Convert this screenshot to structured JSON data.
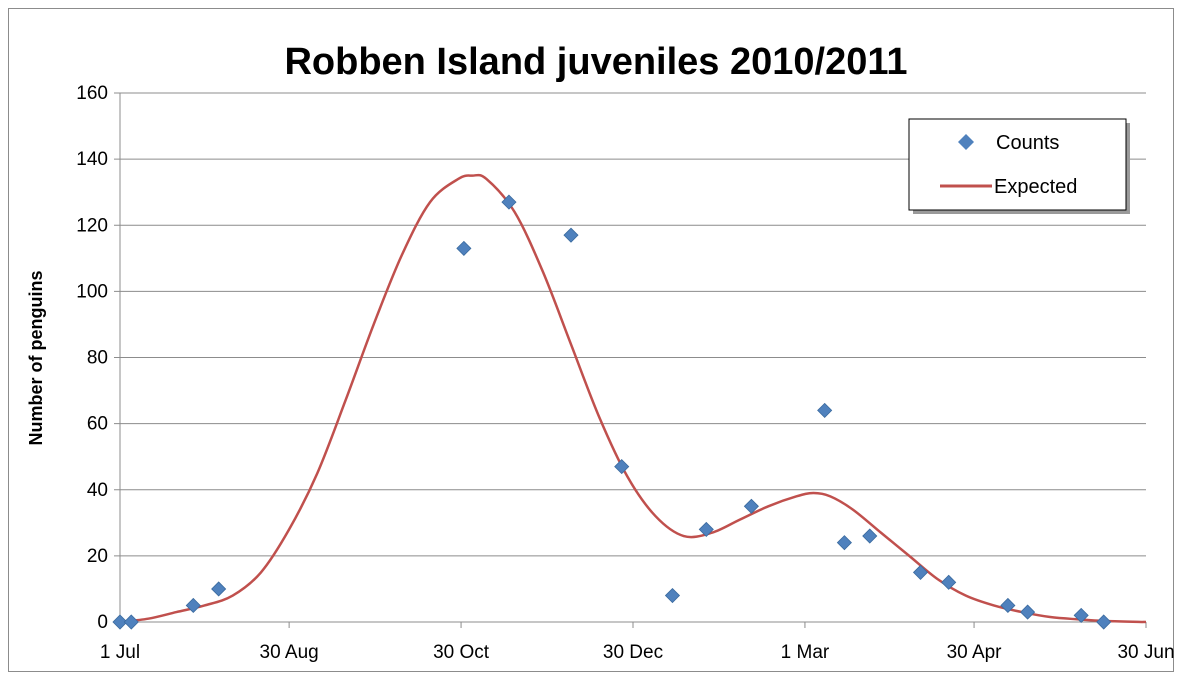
{
  "chart_data": {
    "type": "scatter",
    "title": "Robben Island juveniles 2010/2011",
    "xlabel": "",
    "ylabel": "Number of penguins",
    "x_axis": {
      "type": "date",
      "range": [
        "1 Jul",
        "30 Jun"
      ],
      "tick_labels": [
        "1 Jul",
        "30 Aug",
        "30 Oct",
        "30 Dec",
        "1 Mar",
        "30 Apr",
        "30 Jun"
      ],
      "tick_days": [
        0,
        60,
        121,
        182,
        243,
        303,
        364
      ]
    },
    "y_axis": {
      "range": [
        0,
        160
      ],
      "ticks": [
        0,
        20,
        40,
        60,
        80,
        100,
        120,
        140,
        160
      ]
    },
    "grid": "horizontal",
    "legend_position": "top-right",
    "series": [
      {
        "name": "Counts",
        "kind": "markers",
        "marker": "diamond",
        "color": "#4f81bd",
        "points": [
          {
            "day": 0,
            "value": 0
          },
          {
            "day": 4,
            "value": 0
          },
          {
            "day": 26,
            "value": 5
          },
          {
            "day": 35,
            "value": 10
          },
          {
            "day": 122,
            "value": 113
          },
          {
            "day": 138,
            "value": 127
          },
          {
            "day": 160,
            "value": 117
          },
          {
            "day": 178,
            "value": 47
          },
          {
            "day": 196,
            "value": 8
          },
          {
            "day": 208,
            "value": 28
          },
          {
            "day": 224,
            "value": 35
          },
          {
            "day": 250,
            "value": 64
          },
          {
            "day": 257,
            "value": 24
          },
          {
            "day": 266,
            "value": 26
          },
          {
            "day": 284,
            "value": 15
          },
          {
            "day": 294,
            "value": 12
          },
          {
            "day": 315,
            "value": 5
          },
          {
            "day": 322,
            "value": 3
          },
          {
            "day": 341,
            "value": 2
          },
          {
            "day": 349,
            "value": 0
          }
        ]
      },
      {
        "name": "Expected",
        "kind": "line",
        "color": "#c0504d",
        "points": [
          {
            "day": 0,
            "value": 0
          },
          {
            "day": 10,
            "value": 1
          },
          {
            "day": 20,
            "value": 3
          },
          {
            "day": 30,
            "value": 5
          },
          {
            "day": 40,
            "value": 8
          },
          {
            "day": 50,
            "value": 15
          },
          {
            "day": 60,
            "value": 28
          },
          {
            "day": 70,
            "value": 45
          },
          {
            "day": 80,
            "value": 67
          },
          {
            "day": 90,
            "value": 90
          },
          {
            "day": 100,
            "value": 111
          },
          {
            "day": 110,
            "value": 127
          },
          {
            "day": 120,
            "value": 134
          },
          {
            "day": 125,
            "value": 135
          },
          {
            "day": 130,
            "value": 134
          },
          {
            "day": 140,
            "value": 124
          },
          {
            "day": 150,
            "value": 106
          },
          {
            "day": 160,
            "value": 84
          },
          {
            "day": 170,
            "value": 62
          },
          {
            "day": 180,
            "value": 44
          },
          {
            "day": 190,
            "value": 32
          },
          {
            "day": 200,
            "value": 26
          },
          {
            "day": 210,
            "value": 27
          },
          {
            "day": 220,
            "value": 31
          },
          {
            "day": 230,
            "value": 35
          },
          {
            "day": 240,
            "value": 38
          },
          {
            "day": 246,
            "value": 39
          },
          {
            "day": 252,
            "value": 38
          },
          {
            "day": 260,
            "value": 34
          },
          {
            "day": 270,
            "value": 27
          },
          {
            "day": 280,
            "value": 20
          },
          {
            "day": 290,
            "value": 13
          },
          {
            "day": 300,
            "value": 8
          },
          {
            "day": 310,
            "value": 5
          },
          {
            "day": 320,
            "value": 3
          },
          {
            "day": 330,
            "value": 1.5
          },
          {
            "day": 340,
            "value": 0.8
          },
          {
            "day": 350,
            "value": 0.3
          },
          {
            "day": 364,
            "value": 0
          }
        ]
      }
    ]
  }
}
